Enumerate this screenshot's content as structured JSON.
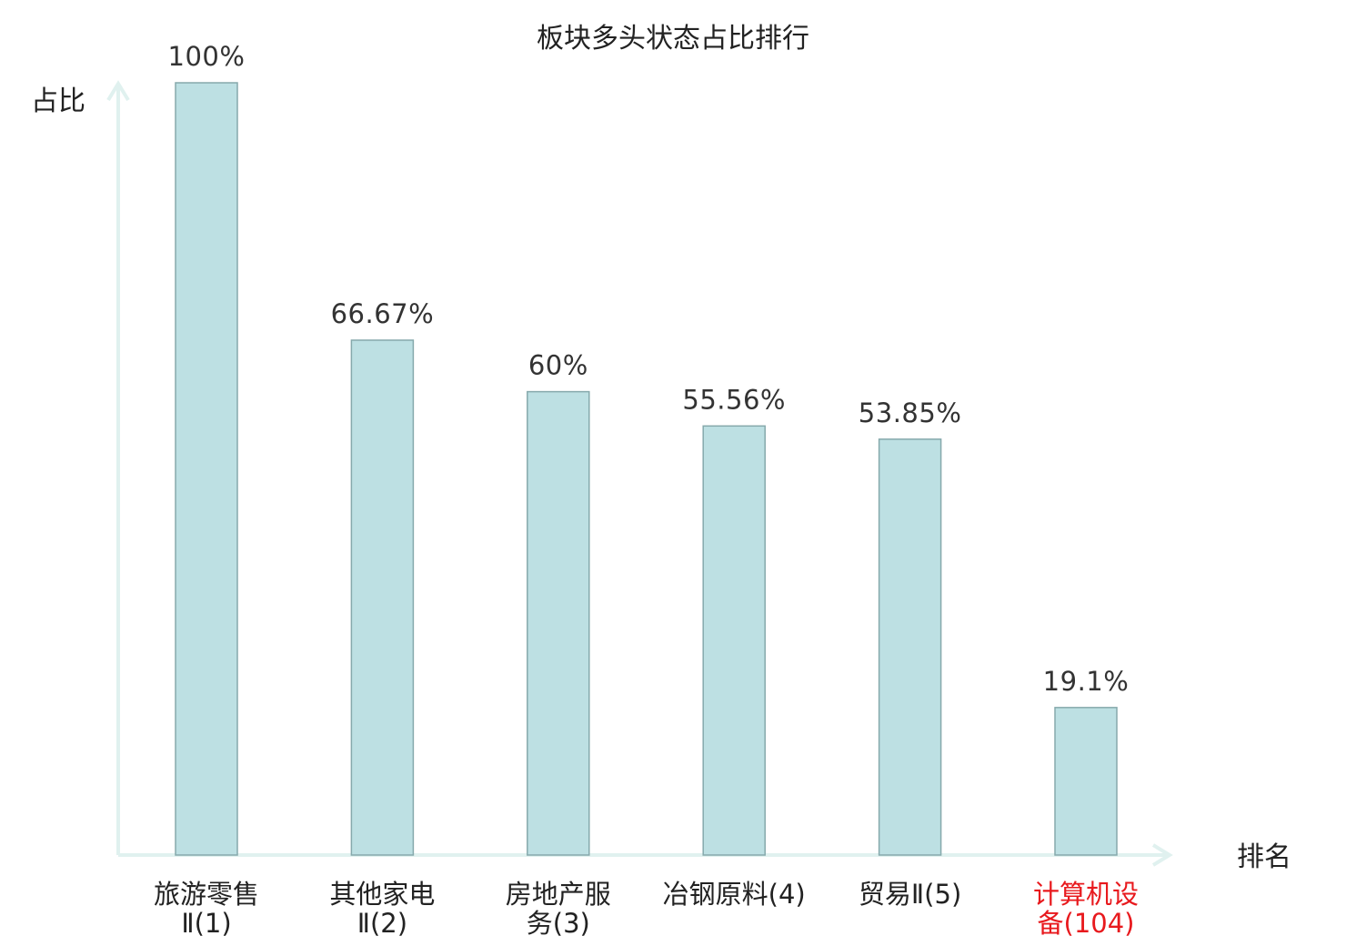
{
  "chart_data": {
    "type": "bar",
    "title": "板块多头状态占比排行",
    "xlabel": "排名",
    "ylabel": "占比",
    "ylim": [
      0,
      100
    ],
    "grid": false,
    "categories": [
      [
        "旅游零售",
        "Ⅱ(1)"
      ],
      [
        "其他家电",
        "Ⅱ(2)"
      ],
      [
        "房地产服",
        "务(3)"
      ],
      [
        "冶钢原料(4)"
      ],
      [
        "贸易Ⅱ(5)"
      ],
      [
        "计算机设",
        "备(104)"
      ]
    ],
    "values": [
      100,
      66.67,
      60,
      55.56,
      53.85,
      19.1
    ],
    "value_labels": [
      "100%",
      "66.67%",
      "60%",
      "55.56%",
      "53.85%",
      "19.1%"
    ],
    "highlight_index": 5
  },
  "colors": {
    "bar_fill": "#bde0e3",
    "bar_stroke": "#86a9ac",
    "axis": "#e0f1ef",
    "highlight_text": "#e8191d",
    "text": "#222222"
  }
}
